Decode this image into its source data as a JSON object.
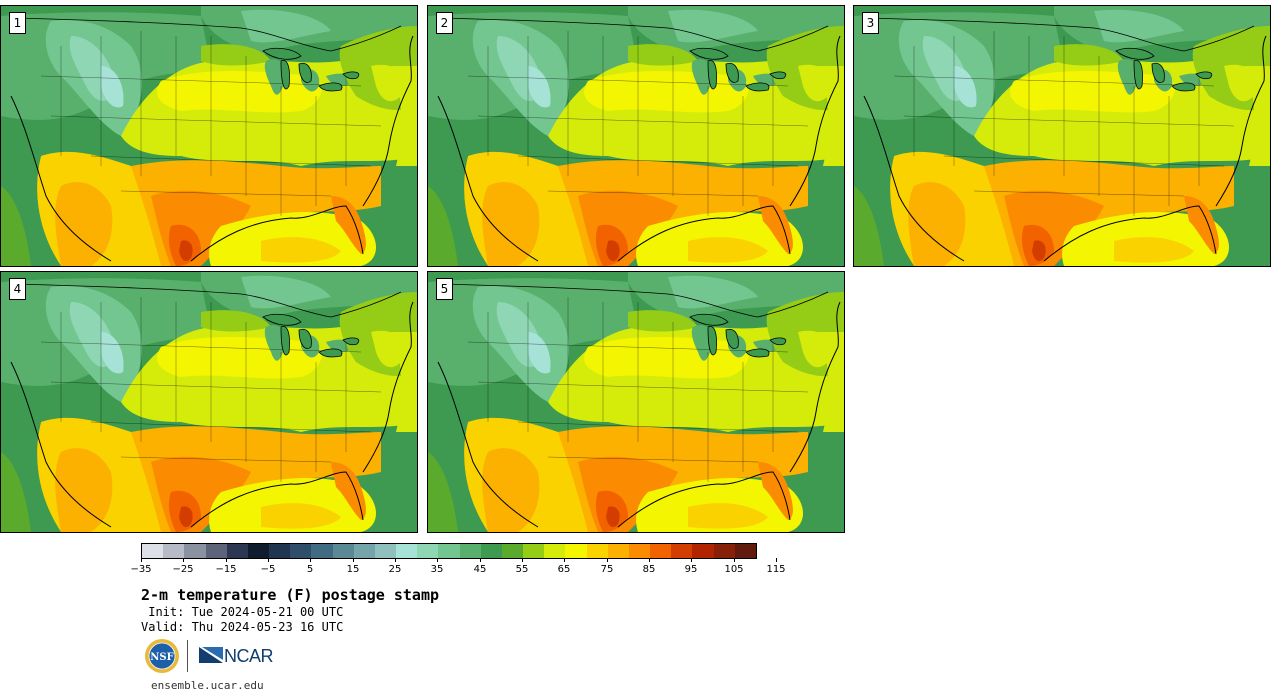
{
  "panels": [
    {
      "label": "1"
    },
    {
      "label": "2"
    },
    {
      "label": "3"
    },
    {
      "label": "4"
    },
    {
      "label": "5"
    }
  ],
  "colorbar": {
    "colors": [
      "#dde0e6",
      "#b6bbc6",
      "#8a91a1",
      "#5d6479",
      "#2c3752",
      "#101c2e",
      "#1f3550",
      "#2f4e6a",
      "#416b83",
      "#5b8895",
      "#75a4aa",
      "#8fc0bd",
      "#a6e2d6",
      "#8fd6b5",
      "#74c690",
      "#58b06c",
      "#3d9a50",
      "#5aaa2d",
      "#94cc16",
      "#d5ec0b",
      "#f4f500",
      "#fad200",
      "#fcb000",
      "#fb8b00",
      "#f26300",
      "#d43d00",
      "#b02400",
      "#862008",
      "#601a0e"
    ],
    "tick_labels": [
      "−35",
      "−25",
      "−15",
      "−5",
      "5",
      "15",
      "25",
      "35",
      "45",
      "55",
      "65",
      "75",
      "85",
      "95",
      "105",
      "115"
    ]
  },
  "title": "2-m temperature (F) postage stamp",
  "init": " Init: Tue 2024-05-21 00 UTC",
  "valid": "Valid: Thu 2024-05-23 16 UTC",
  "logos": {
    "nsf": "NSF",
    "ncar": "NCAR"
  },
  "website": "ensemble.ucar.edu"
}
